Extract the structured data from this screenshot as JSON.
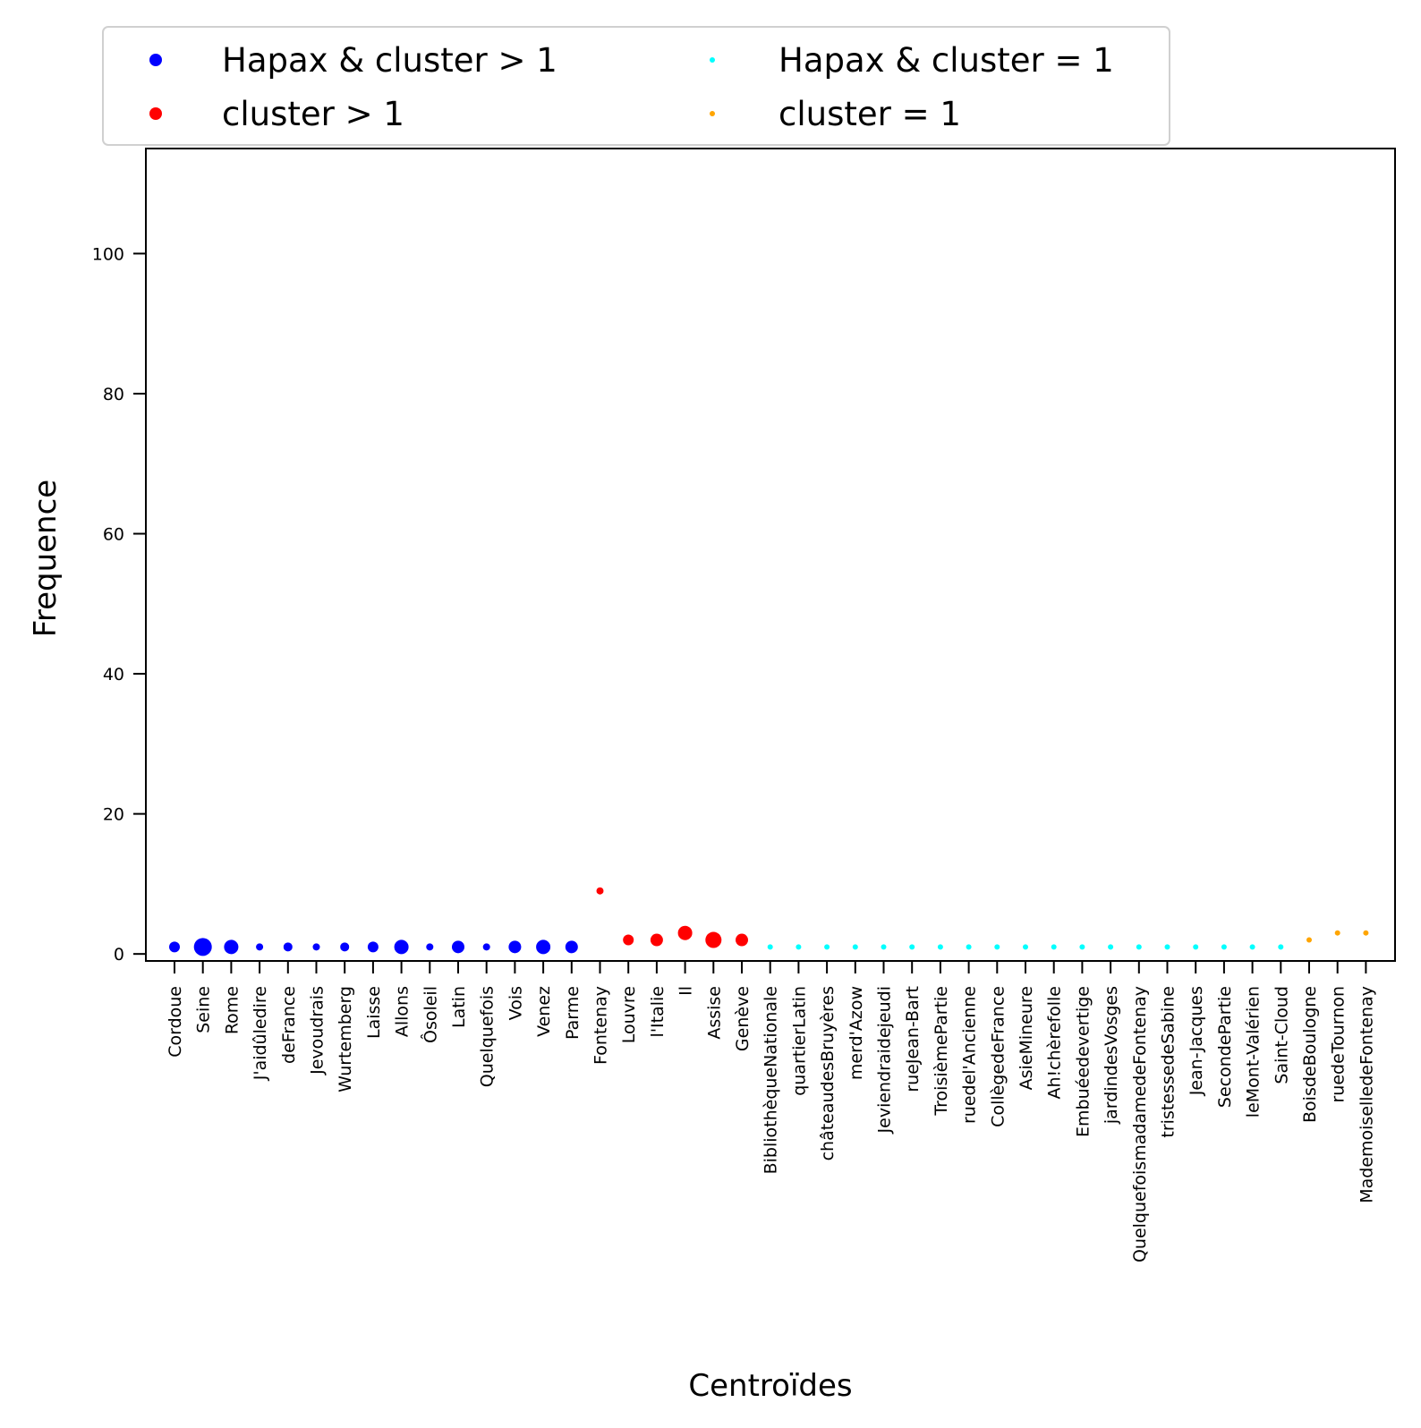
{
  "chart_data": {
    "type": "scatter",
    "xlabel": "Centroïdes",
    "ylabel": "Frequence",
    "ylim": [
      -1,
      115
    ],
    "yticks": [
      0,
      20,
      40,
      60,
      80,
      100
    ],
    "grid": false,
    "legend_position": "top, above plot",
    "categories": [
      "Cordoue",
      "Seine",
      "Rome",
      "J'aidûledire",
      "deFrance",
      "Jevoudrais",
      "Wurtemberg",
      "Laisse",
      "Allons",
      "Ôsoleil",
      "Latin",
      "Quelquefois",
      "Vois",
      "Venez",
      "Parme",
      "Fontenay",
      "Louvre",
      "l'Italie",
      "Il",
      "Assise",
      "Genève",
      "BibliothèqueNationale",
      "quartierLatin",
      "châteaudesBruyères",
      "merd'Azow",
      "Jeviendraidejeudi",
      "rueJean-Bart",
      "TroisièmePartie",
      "ruedel'Ancienne",
      "CollègedeFrance",
      "AsieMineure",
      "Ah!chèrefolle",
      "Embuéedevertige",
      "jardindesVosges",
      "QuelquefoismadamedeFontenay",
      "tristessedeSabine",
      "Jean-Jacques",
      "SecondePartie",
      "leMont-Valérien",
      "Saint-Cloud",
      "BoisdeBoulogne",
      "ruedeTournon",
      "MademoiselledeFontenay"
    ],
    "series": [
      {
        "name": "Hapax & cluster > 1",
        "color": "#0000ff",
        "x": [
          "Cordoue",
          "Seine",
          "Rome",
          "J'aidûledire",
          "deFrance",
          "Jevoudrais",
          "Wurtemberg",
          "Laisse",
          "Allons",
          "Ôsoleil",
          "Latin",
          "Quelquefois",
          "Vois",
          "Venez",
          "Parme"
        ],
        "y": [
          1,
          1,
          1,
          1,
          1,
          1,
          1,
          1,
          1,
          1,
          1,
          1,
          1,
          1,
          1
        ],
        "size": [
          6,
          10,
          8,
          4,
          5,
          4,
          5,
          6,
          8,
          4,
          7,
          4,
          7,
          8,
          7
        ]
      },
      {
        "name": "cluster > 1",
        "color": "#ff0000",
        "x": [
          "Fontenay",
          "Louvre",
          "l'Italie",
          "Il",
          "Assise",
          "Genève"
        ],
        "y": [
          9,
          2,
          2,
          3,
          2,
          2
        ],
        "size": [
          4,
          6,
          7,
          8,
          9,
          7
        ]
      },
      {
        "name": "Hapax & cluster = 1",
        "color": "#00ffff",
        "x": [
          "BibliothèqueNationale",
          "quartierLatin",
          "châteaudesBruyères",
          "merd'Azow",
          "Jeviendraidejeudi",
          "rueJean-Bart",
          "TroisièmePartie",
          "ruedel'Ancienne",
          "CollègedeFrance",
          "AsieMineure",
          "Ah!chèrefolle",
          "Embuéedevertige",
          "jardindesVosges",
          "QuelquefoismadamedeFontenay",
          "tristessedeSabine",
          "Jean-Jacques",
          "SecondePartie",
          "leMont-Valérien",
          "Saint-Cloud"
        ],
        "y": [
          1,
          1,
          1,
          1,
          1,
          1,
          1,
          1,
          1,
          1,
          1,
          1,
          1,
          1,
          1,
          1,
          1,
          1,
          1
        ],
        "size": [
          3,
          3,
          3,
          3,
          3,
          3,
          3,
          3,
          3,
          3,
          3,
          3,
          3,
          3,
          3,
          3,
          3,
          3,
          3
        ]
      },
      {
        "name": "cluster = 1",
        "color": "#ffa500",
        "x": [
          "BoisdeBoulogne",
          "ruedeTournon",
          "MademoiselledeFontenay"
        ],
        "y": [
          2,
          3,
          3
        ],
        "size": [
          3,
          3,
          3
        ]
      }
    ],
    "legend": [
      {
        "label": "Hapax & cluster > 1",
        "color": "#0000ff"
      },
      {
        "label": "cluster > 1",
        "color": "#ff0000"
      },
      {
        "label": "Hapax & cluster = 1",
        "color": "#00ffff"
      },
      {
        "label": "cluster = 1",
        "color": "#ffa500"
      }
    ]
  }
}
